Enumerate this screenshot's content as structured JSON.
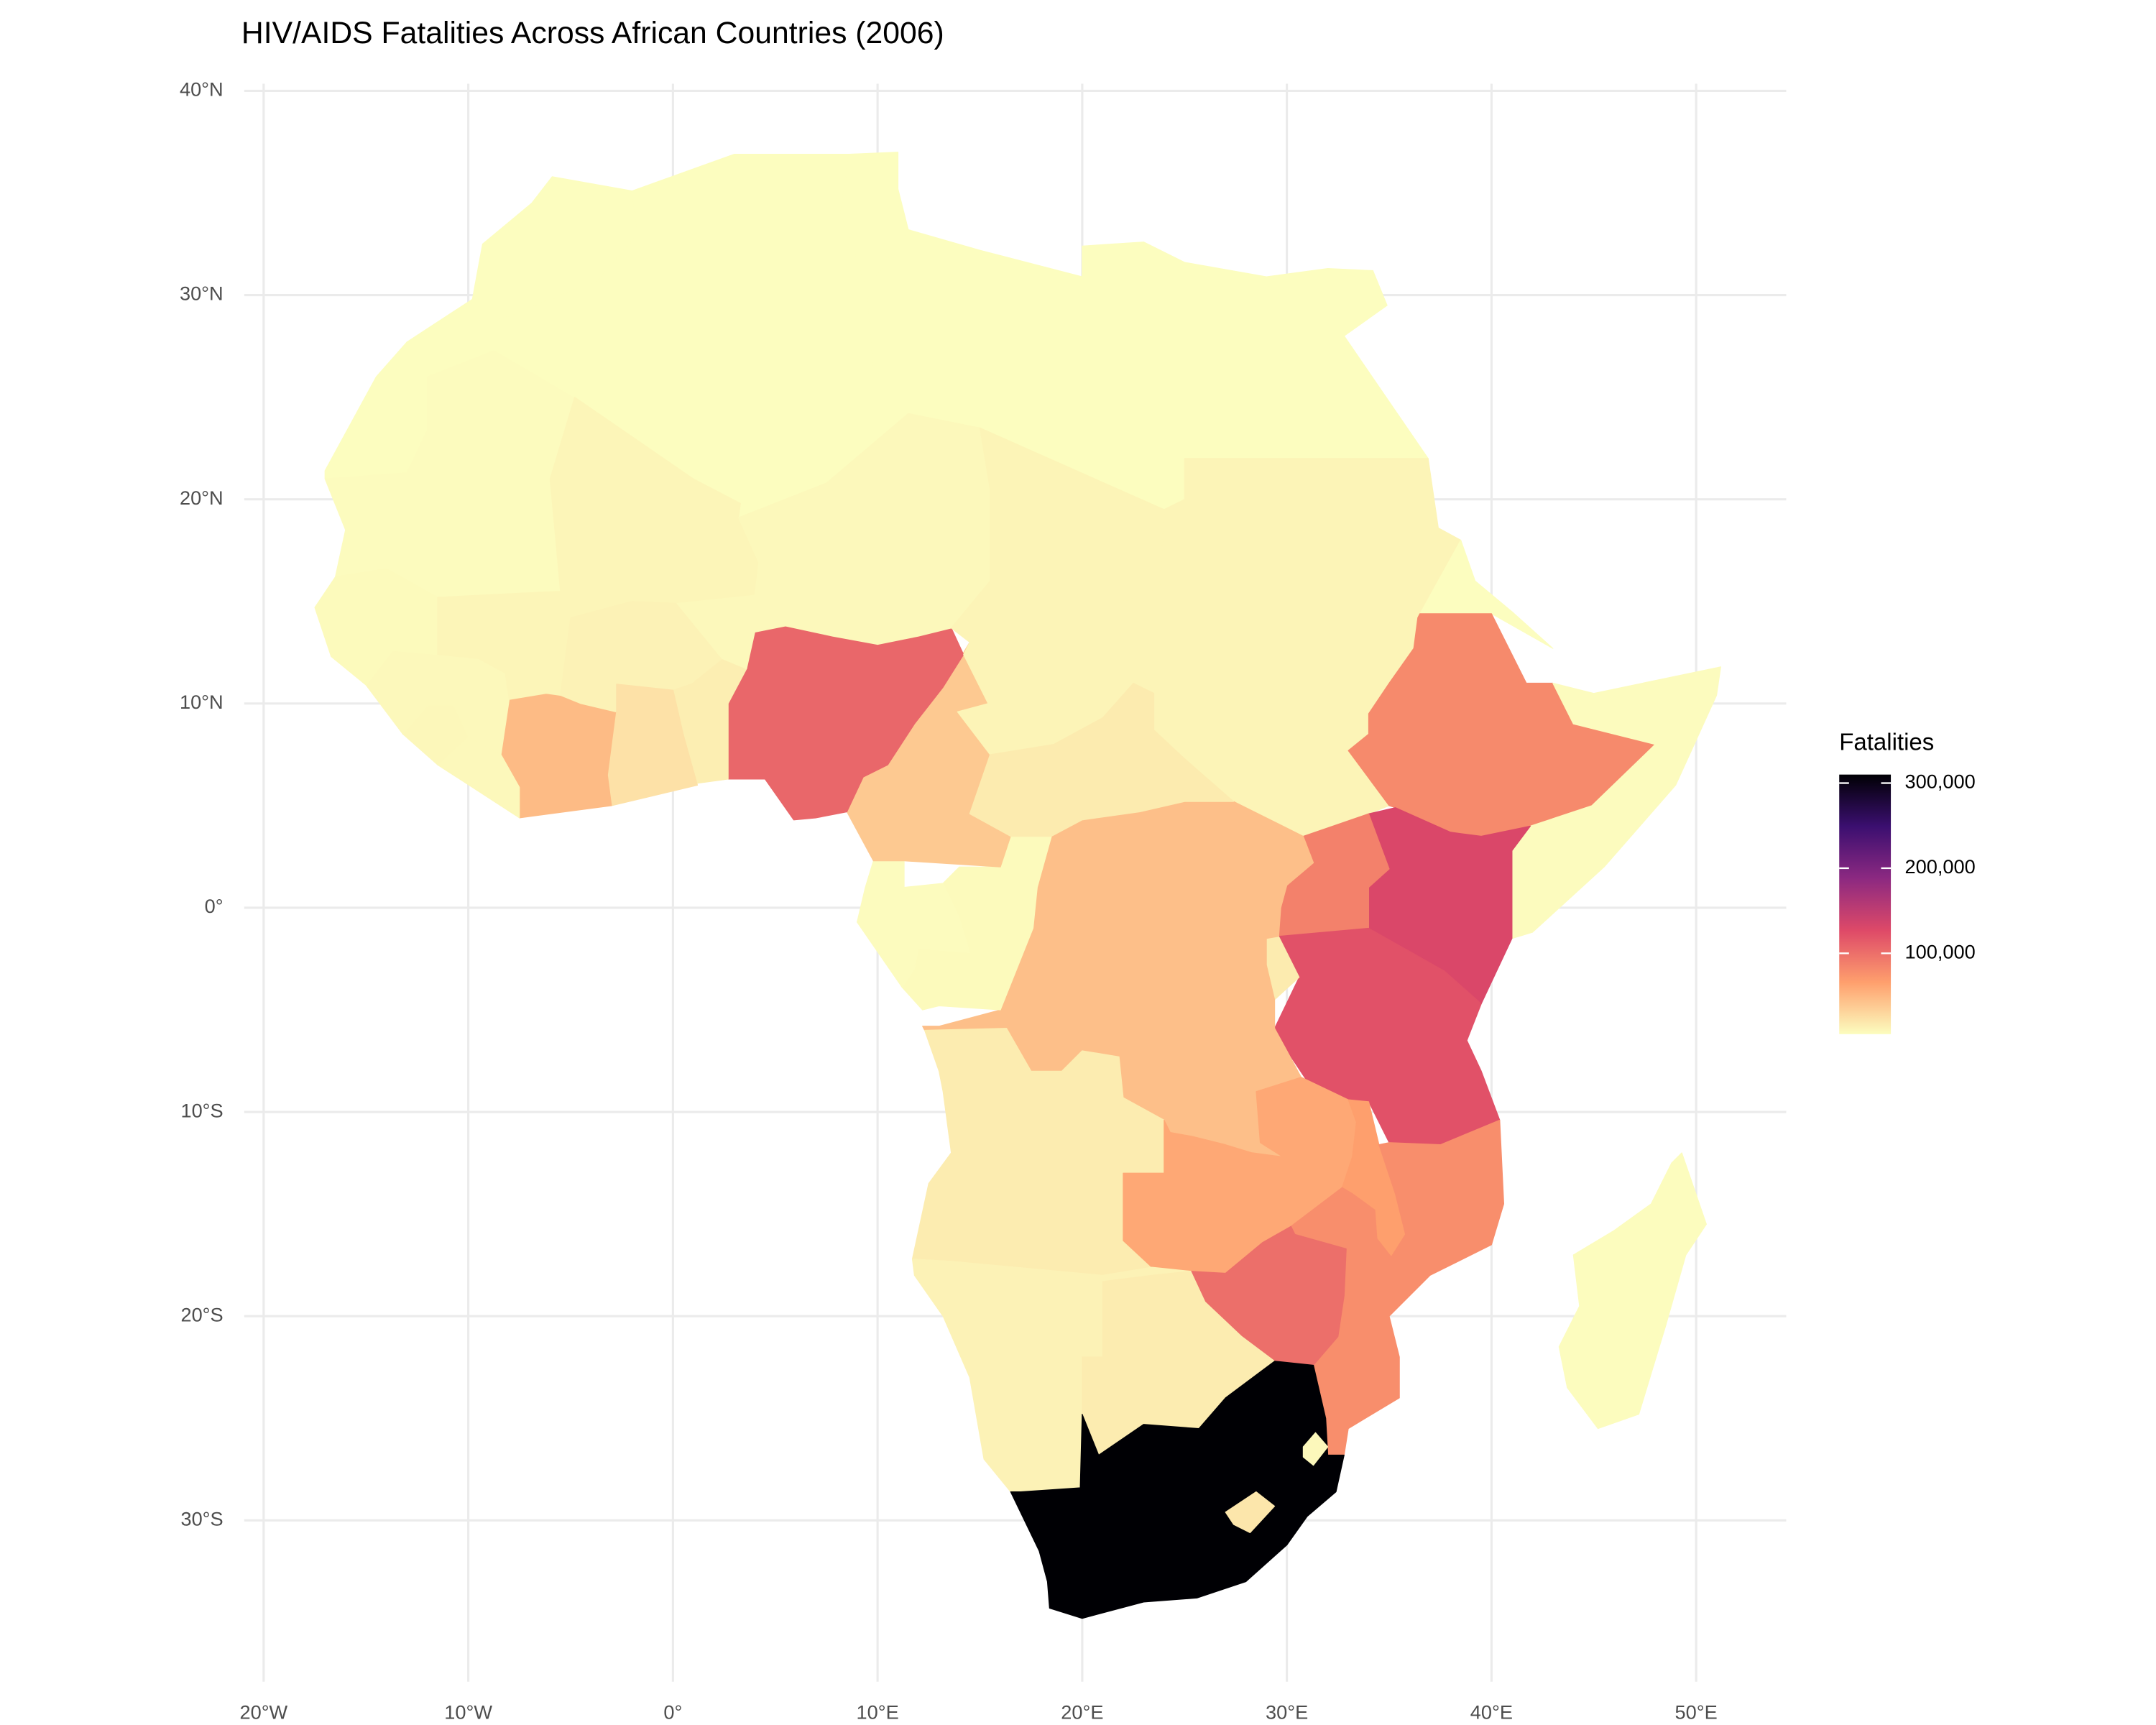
{
  "chart_data": {
    "type": "choropleth",
    "title": "HIV/AIDS Fatalities Across African Countries (2006)",
    "legend_title": "Fatalities",
    "values": [
      5000,
      6000,
      5000,
      5000,
      5000,
      5000,
      11000,
      5000,
      81000,
      6000,
      130000,
      87000,
      121000,
      17000,
      45000,
      7000,
      6000,
      39000,
      106000,
      15000,
      23000,
      48000,
      8000,
      9000,
      8000,
      7000,
      10000,
      12000,
      8000,
      11000,
      17000,
      16000,
      60000,
      66000,
      78000,
      100000,
      12000,
      16000,
      310000,
      20000,
      8000,
      5500
    ],
    "colorscale": [
      "#fcfdbf",
      "#fe9f6d",
      "#de4968",
      "#8c2981",
      "#3b0f70",
      "#000004"
    ],
    "clim": [
      5000,
      310000
    ],
    "cticks": [
      {
        "value": 100000,
        "label": "100,000"
      },
      {
        "value": 200000,
        "label": "200,000"
      },
      {
        "value": 300000,
        "label": "300,000"
      }
    ],
    "xlim": [
      -20.95,
      54.4
    ],
    "ylim": [
      -37.9,
      40.35
    ],
    "xticks": [
      {
        "value": -20,
        "label": "20°W"
      },
      {
        "value": -10,
        "label": "10°W"
      },
      {
        "value": 0,
        "label": "0°"
      },
      {
        "value": 10,
        "label": "10°E"
      },
      {
        "value": 20,
        "label": "20°E"
      },
      {
        "value": 30,
        "label": "30°E"
      },
      {
        "value": 40,
        "label": "40°E"
      },
      {
        "value": 50,
        "label": "50°E"
      }
    ],
    "yticks": [
      {
        "value": -30,
        "label": "30°S"
      },
      {
        "value": -20,
        "label": "20°S"
      },
      {
        "value": -10,
        "label": "10°S"
      },
      {
        "value": 0,
        "label": "0°"
      },
      {
        "value": 10,
        "label": "10°N"
      },
      {
        "value": 20,
        "label": "20°N"
      },
      {
        "value": 30,
        "label": "30°N"
      },
      {
        "value": 40,
        "label": "40°N"
      }
    ],
    "grid": true
  }
}
